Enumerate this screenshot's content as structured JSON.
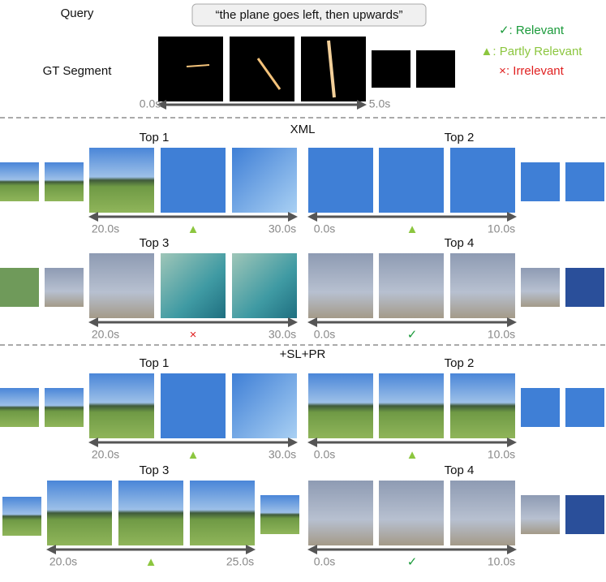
{
  "header": {
    "query_label": "Query",
    "query": "“the plane goes left, then upwards”",
    "gt_label": "GT Segment",
    "gt_start": "0.0s",
    "gt_end": "5.0s"
  },
  "legend": [
    {
      "symbol": "✓",
      "label": ": Relevant",
      "color": "#1a9a3a"
    },
    {
      "symbol": "▲",
      "label": ": Partly Relevant",
      "color": "#8cc63f"
    },
    {
      "symbol": "×",
      "label": ": Irrelevant",
      "color": "#e02020"
    }
  ],
  "sections": [
    {
      "title": "XML",
      "results": [
        {
          "label": "Top 1",
          "start": "20.0s",
          "end": "30.0s",
          "marker": "▲"
        },
        {
          "label": "Top 2",
          "start": "0.0s",
          "end": "10.0s",
          "marker": "▲"
        },
        {
          "label": "Top 3",
          "start": "20.0s",
          "end": "30.0s",
          "marker": "×"
        },
        {
          "label": "Top 4",
          "start": "0.0s",
          "end": "10.0s",
          "marker": "✓"
        }
      ]
    },
    {
      "title": "+SL+PR",
      "results": [
        {
          "label": "Top 1",
          "start": "20.0s",
          "end": "30.0s",
          "marker": "▲"
        },
        {
          "label": "Top 2",
          "start": "0.0s",
          "end": "10.0s",
          "marker": "▲"
        },
        {
          "label": "Top 3",
          "start": "20.0s",
          "end": "25.0s",
          "marker": "▲"
        },
        {
          "label": "Top 4",
          "start": "0.0s",
          "end": "10.0s",
          "marker": "✓"
        }
      ]
    }
  ]
}
